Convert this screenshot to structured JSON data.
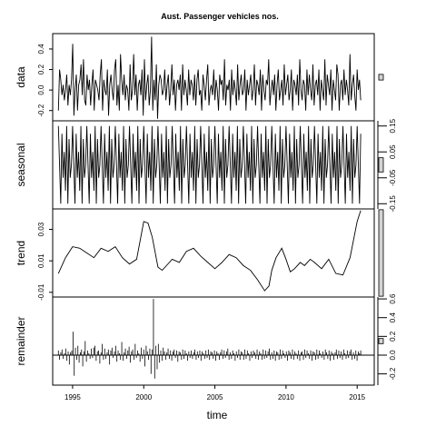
{
  "chart_data": {
    "type": "line",
    "title": "Aust. Passenger vehicles nos.",
    "xlabel": "time",
    "xlim": [
      1993.6,
      2016.2
    ],
    "x_ticks": [
      "1995",
      "2000",
      "2005",
      "2010",
      "2015"
    ],
    "x_tick_values": [
      1995,
      2000,
      2005,
      2010,
      2015
    ],
    "x_start": 1994.0,
    "x_end": 2015.25,
    "grid": false,
    "legend": "none",
    "line_color": "#000000",
    "bar_fill": "#d3d3d3",
    "panels": [
      {
        "name": "data",
        "ylabel": "data",
        "kind": "line",
        "ylim": [
          -0.3,
          0.55
        ],
        "y_ticks": [
          "-0.2",
          "0.0",
          "0.2",
          "0.4"
        ],
        "y_tick_values": [
          -0.2,
          0.0,
          0.2,
          0.4
        ],
        "scale_bar_height": 0.055,
        "series": [
          {
            "values": [
              -0.2,
              0.2,
              0.1,
              -0.05,
              0.05,
              -0.1,
              0.0,
              0.15,
              -0.15,
              0.05,
              -0.05,
              0.1,
              0.45,
              -0.25,
              0.0,
              0.15,
              -0.2,
              0.05,
              0.1,
              0.25,
              -0.05,
              0.3,
              -0.1,
              -0.15,
              0.15,
              0.0,
              0.1,
              -0.15,
              0.05,
              0.2,
              -0.2,
              0.1,
              0.05,
              0.0,
              -0.1,
              0.15,
              0.3,
              -0.2,
              0.1,
              0.0,
              -0.05,
              0.2,
              -0.25,
              0.05,
              0.15,
              0.0,
              -0.1,
              0.2,
              0.3,
              -0.15,
              0.05,
              -0.2,
              0.35,
              0.1,
              -0.05,
              0.15,
              -0.1,
              0.05,
              0.0,
              -0.2,
              0.25,
              -0.1,
              0.0,
              0.35,
              -0.05,
              0.15,
              -0.2,
              0.05,
              0.1,
              -0.05,
              0.2,
              -0.25,
              0.3,
              -0.1,
              0.05,
              0.15,
              -0.15,
              0.0,
              0.52,
              -0.2,
              0.1,
              -0.1,
              0.25,
              -0.28,
              0.05,
              0.15,
              0.1,
              -0.05,
              0.0,
              0.2,
              -0.1,
              0.05,
              0.15,
              -0.15,
              0.0,
              0.25,
              -0.05,
              0.1,
              -0.2,
              0.05,
              0.1,
              0.0,
              0.15,
              -0.2,
              0.25,
              -0.05,
              0.1,
              0.0,
              -0.15,
              0.2,
              -0.05,
              0.1,
              0.05,
              -0.1,
              0.15,
              -0.15,
              0.1,
              0.2,
              -0.05,
              0.0,
              -0.2,
              0.15,
              0.05,
              -0.1,
              0.1,
              0.25,
              -0.15,
              0.0,
              0.05,
              -0.05,
              0.2,
              -0.1,
              0.1,
              0.0,
              -0.2,
              0.15,
              0.05,
              0.1,
              -0.1,
              0.3,
              -0.15,
              0.05,
              0.0,
              0.1,
              -0.2,
              0.2,
              -0.05,
              0.1,
              0.0,
              -0.15,
              0.25,
              -0.1,
              0.05,
              0.15,
              -0.05,
              0.0,
              0.2,
              -0.2,
              0.1,
              -0.05,
              0.05,
              0.15,
              -0.1,
              0.0,
              0.25,
              -0.15,
              0.1,
              0.05,
              -0.05,
              0.2,
              -0.2,
              0.15,
              0.0,
              -0.1,
              0.1,
              0.05,
              0.3,
              -0.15,
              0.0,
              0.1,
              -0.05,
              0.15,
              -0.2,
              0.05,
              0.2,
              -0.1,
              0.0,
              0.1,
              -0.15,
              0.25,
              -0.05,
              0.05,
              0.15,
              -0.1,
              0.0,
              0.2,
              -0.2,
              0.1,
              0.05,
              -0.05,
              0.15,
              -0.15,
              0.3,
              0.0,
              -0.1,
              0.1,
              0.05,
              -0.2,
              0.2,
              -0.05,
              0.15,
              0.0,
              -0.1,
              0.25,
              -0.15,
              0.05,
              0.1,
              -0.05,
              0.2,
              -0.2,
              0.1,
              0.0,
              -0.1,
              0.3,
              -0.15,
              0.15,
              0.05,
              -0.05,
              0.2,
              -0.2,
              0.1,
              0.0,
              -0.1,
              0.25,
              0.15,
              -0.2,
              0.05,
              0.1,
              -0.1,
              0.2,
              -0.05,
              0.1,
              0.0,
              -0.15,
              0.35,
              -0.1,
              0.05,
              0.15,
              -0.05,
              -0.2,
              0.2,
              0.0,
              0.1,
              -0.1
            ]
          }
        ]
      },
      {
        "name": "seasonal",
        "ylabel": "seasonal",
        "kind": "line",
        "ylim": [
          -0.17,
          0.17
        ],
        "y_ticks": [
          "-0.15",
          "-0.05",
          "0.05",
          "0.15"
        ],
        "y_tick_values": [
          -0.15,
          -0.05,
          0.05,
          0.15
        ],
        "scale_bar_height": 0.055,
        "season_pattern": [
          0.15,
          0.0,
          -0.15,
          0.12,
          -0.05,
          0.05,
          -0.1,
          0.15,
          -0.15,
          0.1,
          -0.05,
          0.0
        ]
      },
      {
        "name": "trend",
        "ylabel": "trend",
        "kind": "line",
        "ylim": [
          -0.013,
          0.043
        ],
        "y_ticks": [
          "-0.01",
          "0.01",
          "0.03"
        ],
        "y_tick_values": [
          -0.01,
          0.01,
          0.03
        ],
        "scale_bar_height": 0.055,
        "series": [
          {
            "x": [
              1994.0,
              1994.5,
              1995.0,
              1995.5,
              1996.0,
              1996.5,
              1997.0,
              1997.5,
              1998.0,
              1998.5,
              1999.0,
              1999.5,
              2000.0,
              2000.3,
              2000.6,
              2001.0,
              2001.3,
              2001.7,
              2002.0,
              2002.5,
              2003.0,
              2003.5,
              2004.0,
              2004.5,
              2005.0,
              2005.5,
              2006.0,
              2006.5,
              2007.0,
              2007.5,
              2008.0,
              2008.5,
              2008.8,
              2009.0,
              2009.3,
              2009.7,
              2010.0,
              2010.3,
              2010.6,
              2011.0,
              2011.3,
              2011.7,
              2012.0,
              2012.5,
              2013.0,
              2013.5,
              2014.0,
              2014.5,
              2015.0,
              2015.25
            ],
            "values": [
              0.002,
              0.012,
              0.019,
              0.018,
              0.015,
              0.012,
              0.018,
              0.016,
              0.019,
              0.012,
              0.008,
              0.011,
              0.035,
              0.034,
              0.025,
              0.006,
              0.004,
              0.008,
              0.011,
              0.009,
              0.016,
              0.018,
              0.013,
              0.009,
              0.005,
              0.009,
              0.014,
              0.012,
              0.007,
              0.004,
              -0.002,
              -0.009,
              -0.006,
              0.004,
              0.012,
              0.018,
              0.011,
              0.003,
              0.005,
              0.009,
              0.007,
              0.011,
              0.009,
              0.005,
              0.011,
              0.002,
              0.001,
              0.012,
              0.035,
              0.042
            ]
          }
        ]
      },
      {
        "name": "remainder",
        "ylabel": "remainder",
        "kind": "bar",
        "ylim": [
          -0.32,
          0.62
        ],
        "y_ticks": [
          "-0.2",
          "0.0",
          "0.2",
          "0.4",
          "0.6"
        ],
        "y_tick_values": [
          -0.2,
          0.0,
          0.2,
          0.4,
          0.6
        ],
        "scale_bar_height": 0.055,
        "series": [
          {
            "values": [
              0.05,
              -0.05,
              0.03,
              0.06,
              -0.04,
              0.02,
              0.07,
              -0.06,
              0.04,
              -0.1,
              0.03,
              0.05,
              0.25,
              -0.22,
              0.08,
              -0.05,
              0.1,
              -0.08,
              0.03,
              0.06,
              -0.12,
              0.04,
              0.15,
              -0.07,
              0.05,
              0.02,
              -0.04,
              0.07,
              -0.03,
              0.08,
              0.1,
              -0.06,
              0.04,
              0.05,
              -0.09,
              0.03,
              0.12,
              -0.05,
              0.07,
              -0.04,
              0.03,
              0.06,
              -0.1,
              0.05,
              0.08,
              -0.03,
              0.04,
              0.1,
              -0.07,
              0.05,
              0.02,
              -0.05,
              0.14,
              -0.06,
              0.03,
              0.07,
              -0.04,
              0.05,
              0.09,
              -0.08,
              0.04,
              0.06,
              -0.05,
              0.12,
              -0.03,
              0.05,
              0.02,
              -0.07,
              0.08,
              -0.04,
              0.06,
              -0.12,
              0.1,
              0.04,
              -0.05,
              0.07,
              -0.2,
              0.06,
              0.6,
              -0.25,
              0.1,
              -0.15,
              0.12,
              -0.08,
              0.05,
              -0.06,
              0.08,
              0.04,
              -0.05,
              0.03,
              0.07,
              -0.04,
              0.05,
              -0.06,
              0.04,
              0.06,
              -0.03,
              0.05,
              -0.07,
              0.04,
              0.03,
              -0.05,
              0.06,
              -0.04,
              0.05,
              0.02,
              -0.06,
              0.04,
              -0.03,
              0.05,
              -0.04,
              0.03,
              0.06,
              -0.05,
              0.04,
              -0.03,
              0.05,
              -0.06,
              0.04,
              0.02,
              -0.04,
              0.05,
              -0.03,
              0.06,
              -0.05,
              0.04,
              0.03,
              -0.04,
              0.05,
              -0.06,
              0.04,
              0.02,
              -0.05,
              0.03,
              0.06,
              -0.04,
              0.05,
              -0.03,
              0.04,
              0.07,
              -0.05,
              0.03,
              -0.04,
              0.05,
              0.02,
              -0.06,
              0.04,
              -0.03,
              0.06,
              -0.05,
              0.04,
              0.03,
              -0.05,
              0.06,
              -0.04,
              0.05,
              0.02,
              -0.06,
              0.04,
              -0.03,
              0.05,
              0.03,
              -0.04,
              0.06,
              -0.05,
              0.04,
              0.02,
              -0.05,
              0.06,
              -0.04,
              0.05,
              -0.03,
              0.04,
              0.07,
              -0.05,
              0.03,
              -0.04,
              0.05,
              -0.06,
              0.04,
              0.03,
              -0.05,
              0.06,
              -0.04,
              0.05,
              0.02,
              -0.03,
              0.04,
              -0.06,
              0.05,
              0.03,
              -0.04,
              0.06,
              -0.05,
              0.04,
              0.02,
              -0.04,
              0.05,
              -0.06,
              0.03,
              0.04,
              -0.05,
              0.06,
              -0.03,
              0.05,
              0.02,
              -0.04,
              0.05,
              -0.06,
              0.04,
              0.03,
              -0.05,
              0.06,
              -0.04,
              0.05,
              0.02,
              -0.03,
              0.04,
              -0.05,
              0.06,
              0.03,
              -0.04,
              0.05,
              -0.06,
              0.04,
              0.02,
              -0.05,
              0.03,
              0.06,
              -0.04,
              0.05,
              -0.03,
              0.04,
              -0.05,
              0.06,
              0.02,
              -0.04,
              0.05,
              -0.03,
              0.04,
              0.06,
              -0.05,
              0.03,
              -0.04,
              0.05,
              -0.06,
              0.04,
              0.02,
              0.05
            ]
          }
        ]
      }
    ]
  }
}
